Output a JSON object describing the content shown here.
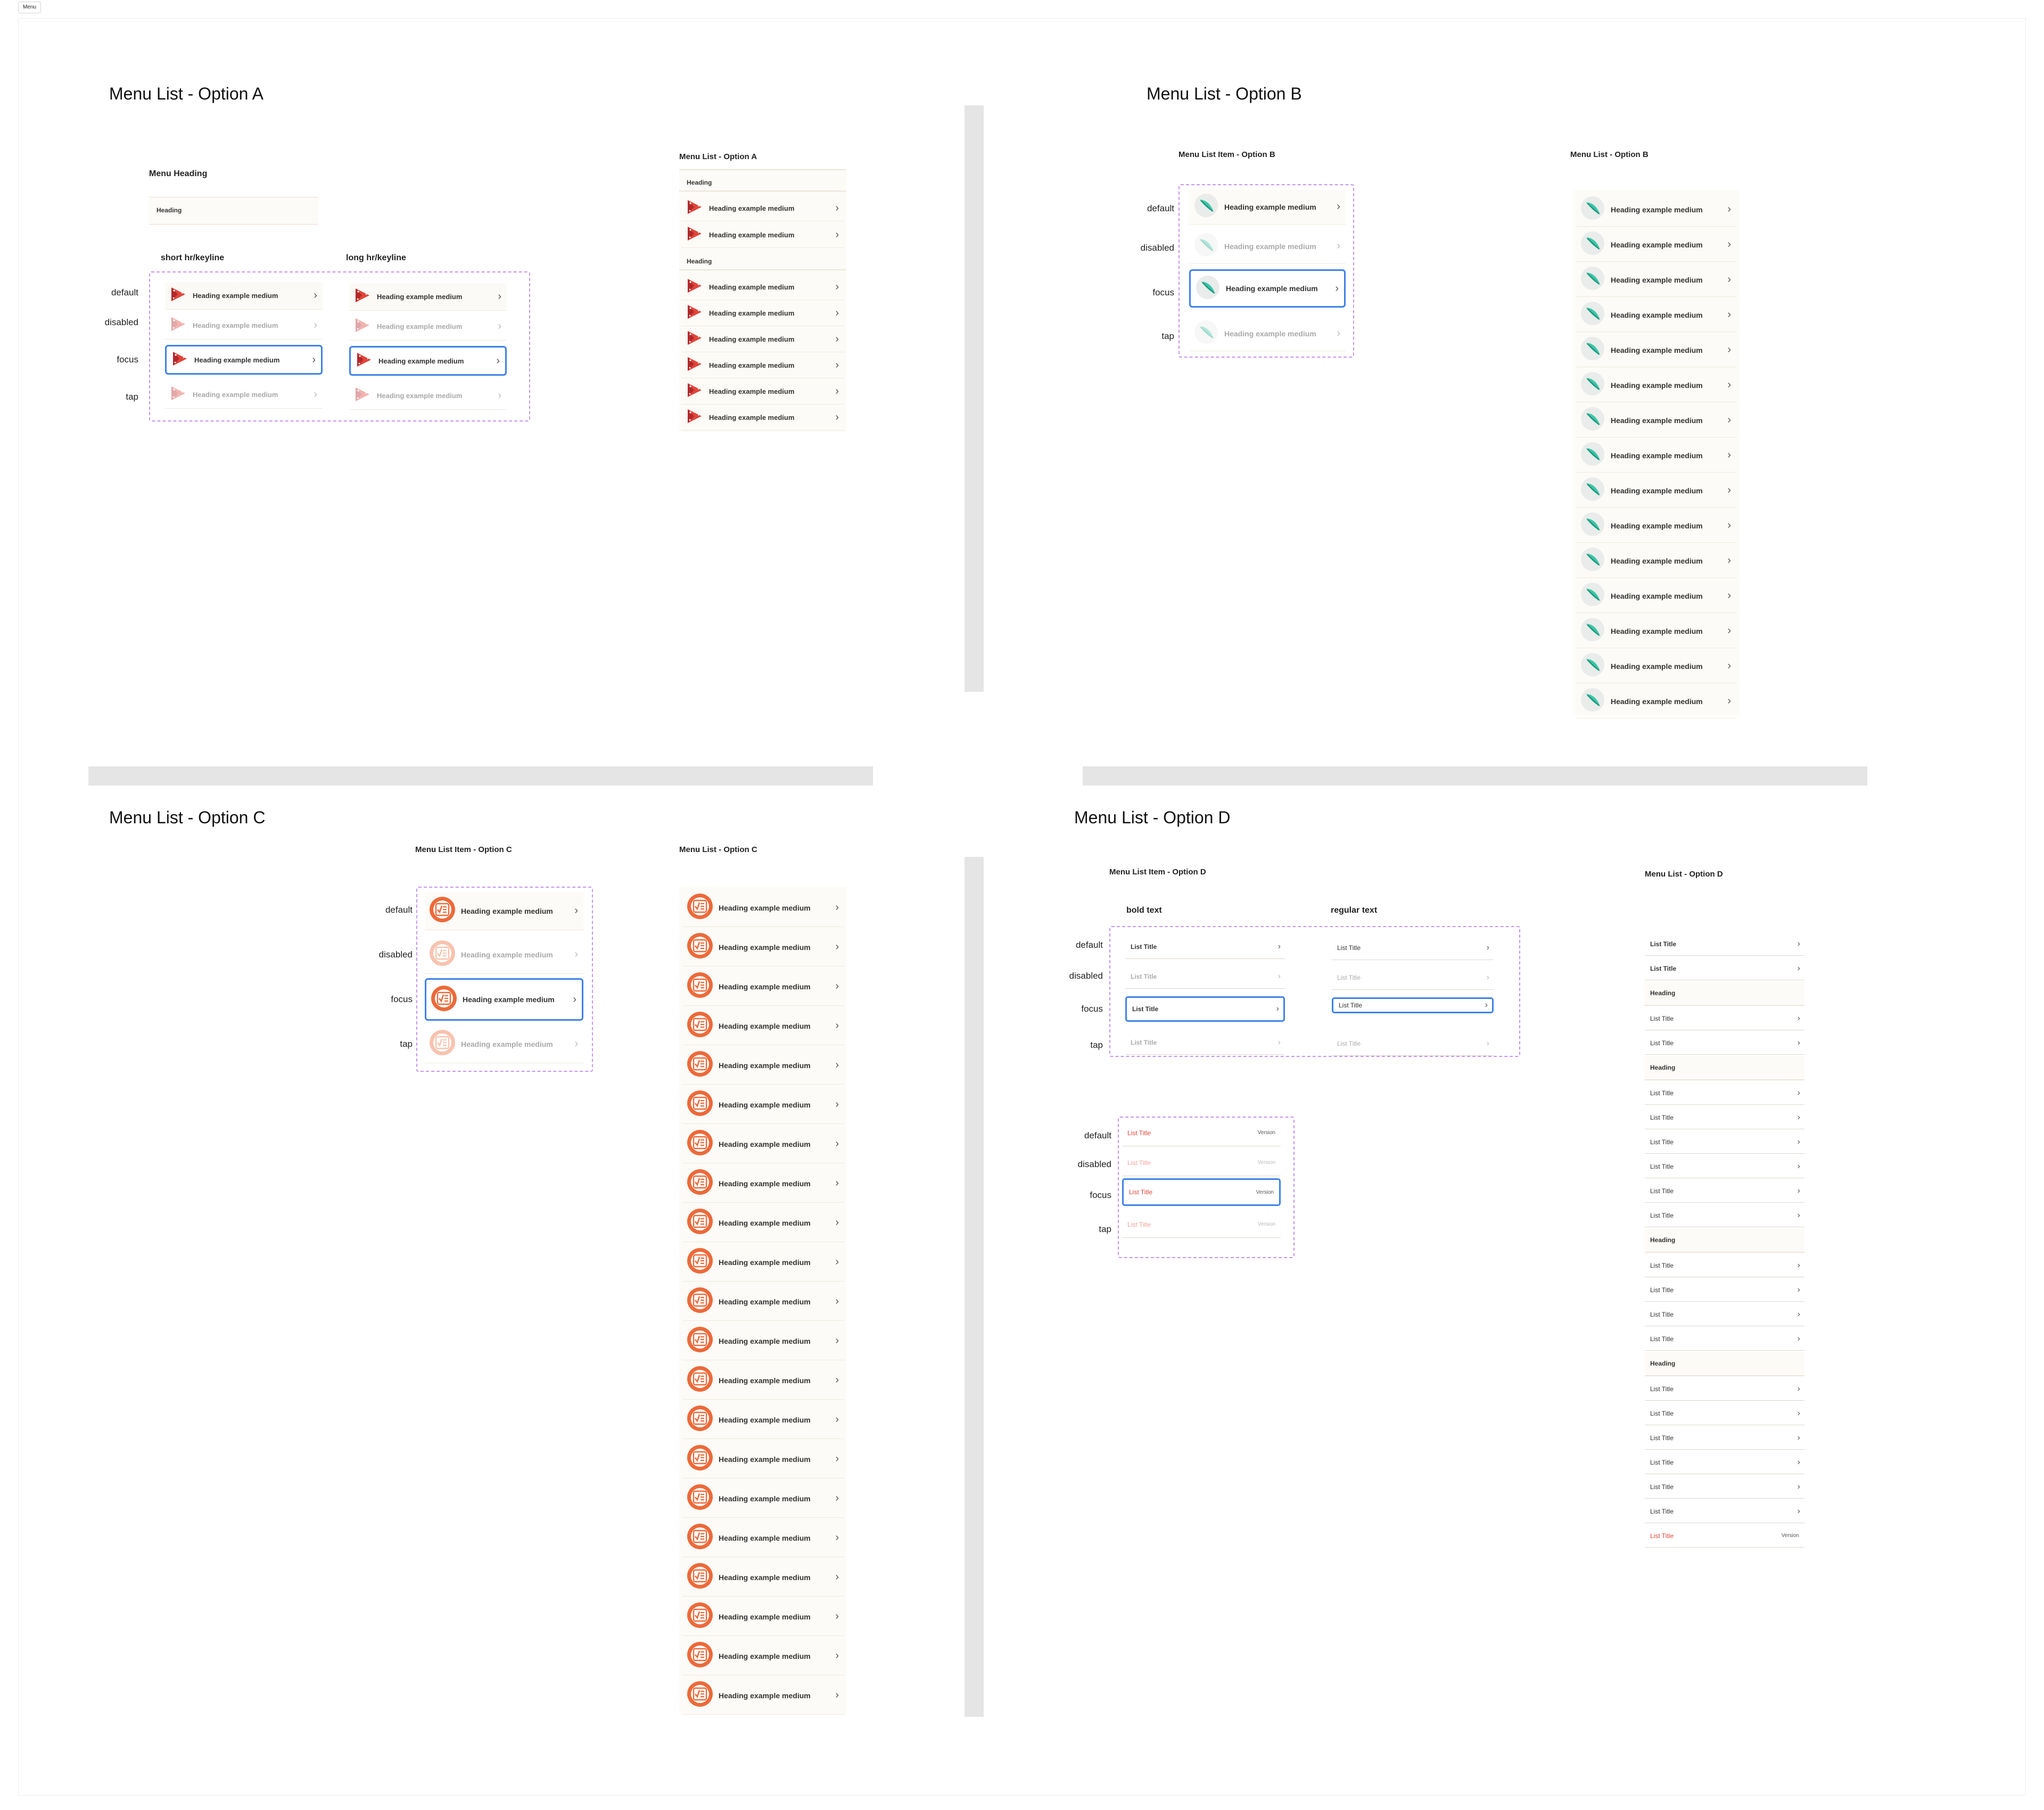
{
  "tag": "Menu",
  "optionA": {
    "title": "Menu List - Option A",
    "menu_heading_label": "Menu Heading",
    "heading_sample": "Heading",
    "col_short": "short hr/keyline",
    "col_long": "long hr/keyline",
    "states": [
      "default",
      "disabled",
      "focus",
      "tap"
    ],
    "item_label": "Heading example medium",
    "list_title": "Menu List - Option A",
    "list_heading_1": "Heading",
    "list_heading_2": "Heading"
  },
  "optionB": {
    "title": "Menu List - Option B",
    "item_title": "Menu List Item - Option B",
    "list_title": "Menu List - Option B",
    "states": [
      "default",
      "disabled",
      "focus",
      "tap"
    ],
    "item_label": "Heading example medium"
  },
  "optionC": {
    "title": "Menu List - Option C",
    "item_title": "Menu List Item - Option C",
    "list_title": "Menu List - Option C",
    "states": [
      "default",
      "disabled",
      "focus",
      "tap"
    ],
    "item_label": "Heading example medium"
  },
  "optionD": {
    "title": "Menu List - Option D",
    "item_title": "Menu List Item - Option D",
    "list_title": "Menu List - Option D",
    "col_bold": "bold text",
    "col_regular": "regular text",
    "states": [
      "default",
      "disabled",
      "focus",
      "tap"
    ],
    "list_title_label": "List Title",
    "version_label": "Version",
    "heading_label": "Heading"
  },
  "colors": {
    "accent_red": "#e0453a",
    "focus_blue": "#3d82e8",
    "dash_purple": "#c596f0",
    "teal": "#3cc6a8",
    "orange": "#ec6a3a"
  }
}
